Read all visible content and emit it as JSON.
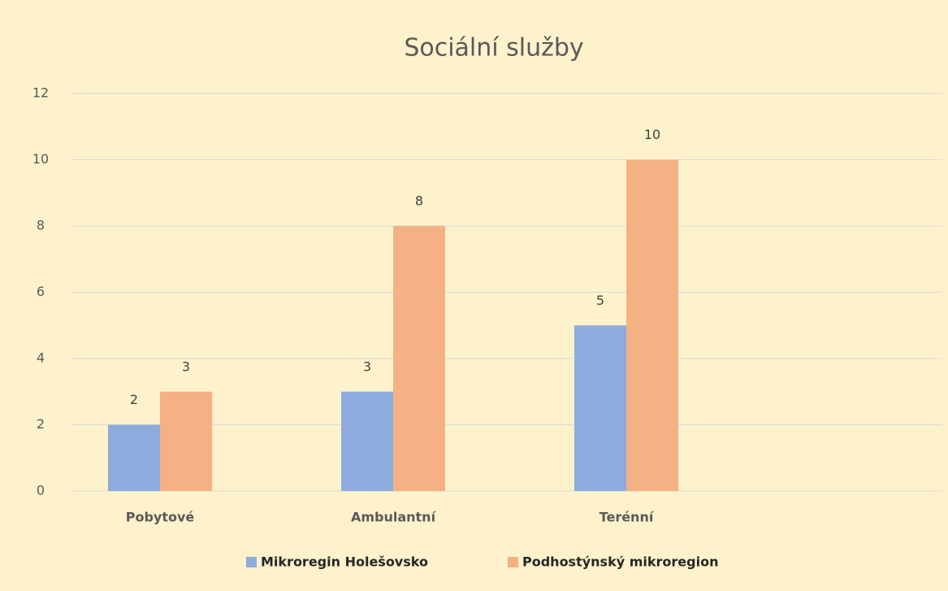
{
  "chart_data": {
    "type": "bar",
    "title": "Sociální služby",
    "categories": [
      "Pobytové",
      "Ambulantní",
      "Terénní"
    ],
    "series": [
      {
        "name": "Mikroregin Holešovsko",
        "color": "#8faadc",
        "values": [
          2,
          3,
          5
        ]
      },
      {
        "name": "Podhostýnský mikroregion",
        "color": "#f4b183",
        "values": [
          3,
          8,
          10
        ]
      }
    ],
    "ylim": [
      0,
      12
    ],
    "yticks": [
      0,
      2,
      4,
      6,
      8,
      10,
      12
    ],
    "grid": true,
    "legend": "bottom"
  }
}
